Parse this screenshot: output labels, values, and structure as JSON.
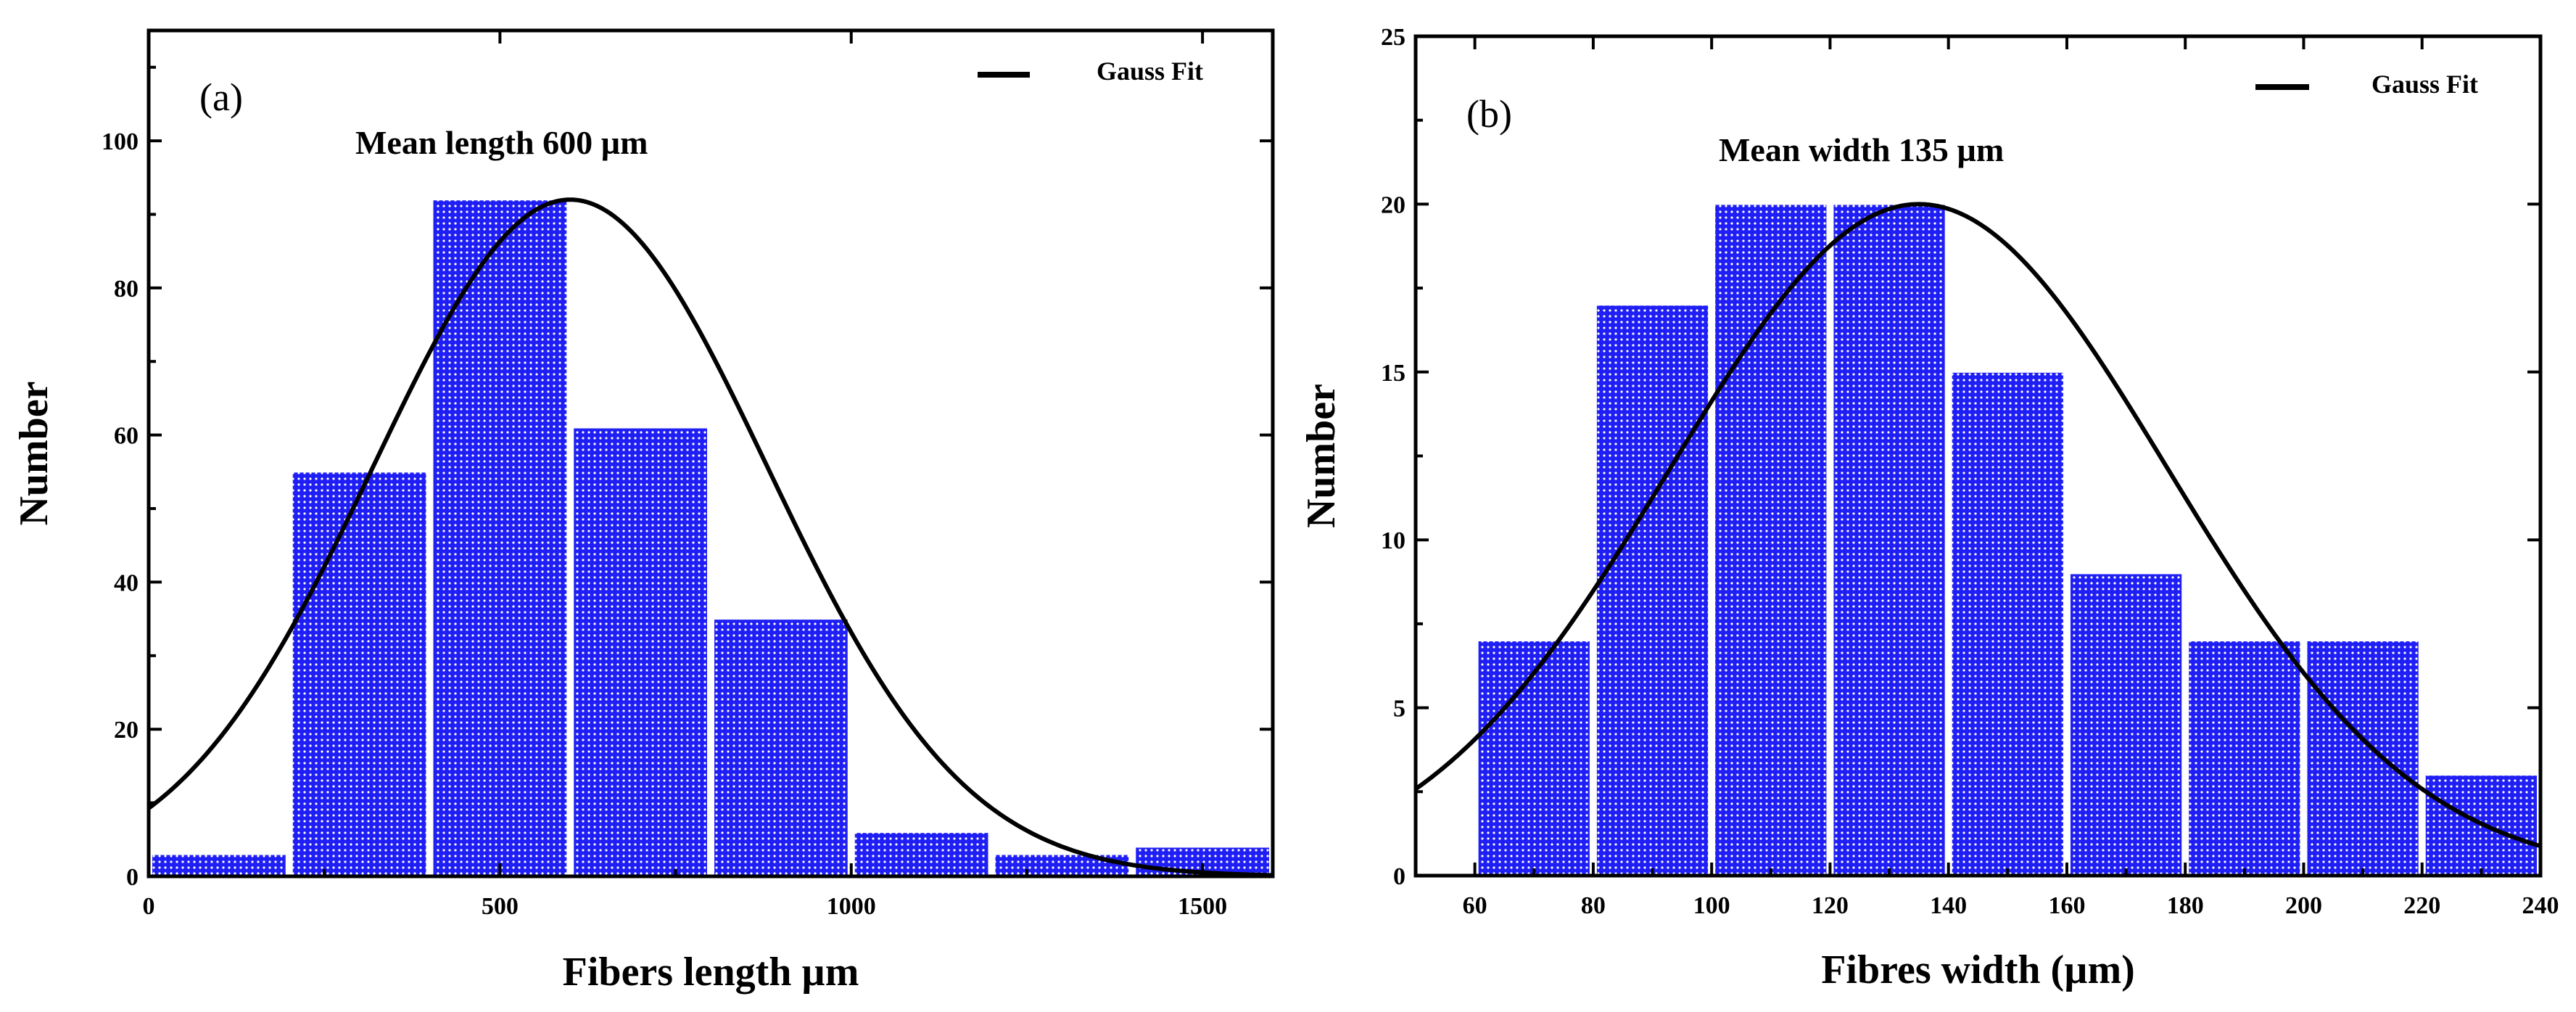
{
  "chart_data": [
    {
      "type": "bar",
      "panel_label": "(a)",
      "annotation": "Mean length 600 µm",
      "xlabel": "Fibers length µm",
      "ylabel": "Number",
      "xlim": [
        0,
        1600
      ],
      "ylim": [
        0,
        115
      ],
      "xticks": [
        0,
        500,
        1000,
        1500
      ],
      "yticks": [
        0,
        20,
        40,
        60,
        80,
        100
      ],
      "bin_edges": [
        0,
        200,
        400,
        600,
        800,
        1000,
        1200,
        1400,
        1600
      ],
      "values": [
        3,
        55,
        92,
        61,
        35,
        6,
        3,
        4
      ],
      "fit": {
        "name": "Gauss Fit",
        "amplitude": 92,
        "mean": 600,
        "sigma": 280
      },
      "legend": "Gauss Fit",
      "bar_color": "#1f1ff5"
    },
    {
      "type": "bar",
      "panel_label": "(b)",
      "annotation": "Mean width  135 µm",
      "xlabel": "Fibres width (µm)",
      "ylabel": "Number",
      "xlim": [
        50,
        240
      ],
      "ylim": [
        0,
        25
      ],
      "xticks": [
        60,
        80,
        100,
        120,
        140,
        160,
        180,
        200,
        220,
        240
      ],
      "yticks": [
        0,
        5,
        10,
        15,
        20,
        25
      ],
      "bin_edges": [
        60,
        80,
        100,
        120,
        140,
        160,
        180,
        200,
        220,
        240
      ],
      "values": [
        7,
        17,
        20,
        20,
        15,
        9,
        7,
        7,
        3
      ],
      "fit": {
        "name": "Gauss Fit",
        "amplitude": 20,
        "mean": 135,
        "sigma": 42
      },
      "legend": "Gauss Fit",
      "bar_color": "#1f1ff5"
    }
  ]
}
